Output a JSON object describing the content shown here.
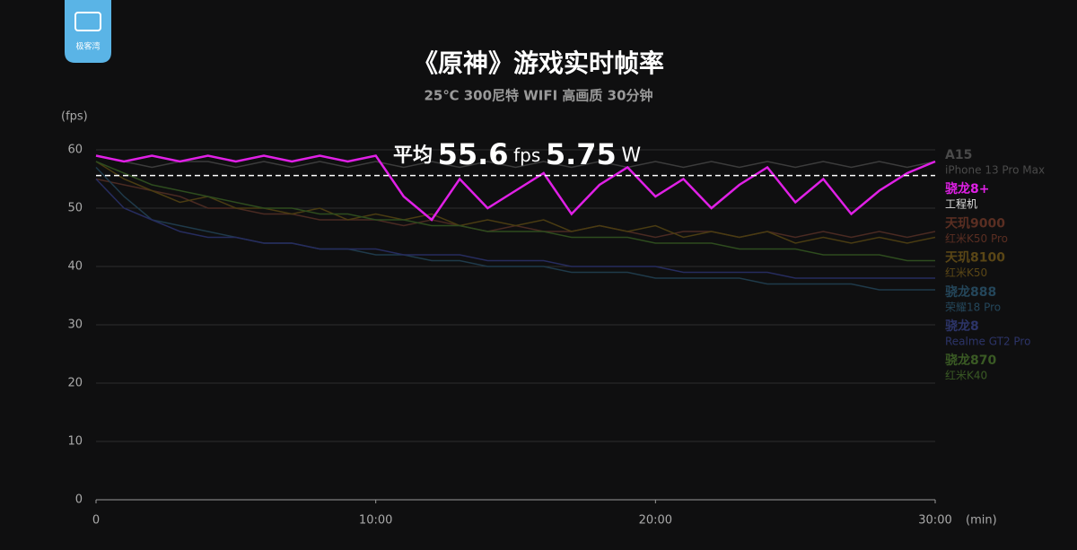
{
  "chart_data": {
    "type": "line",
    "logo_text": "极客湾",
    "title": "《原神》游戏实时帧率",
    "subtitle": "25℃ 300尼特 WIFI 高画质 30分钟",
    "y_label": "(fps)",
    "x_label": "(min)",
    "average_prefix": "平均",
    "average": 55.6,
    "average_unit": "fps",
    "power": 5.75,
    "power_unit": "W",
    "x": [
      0,
      1,
      2,
      3,
      4,
      5,
      6,
      7,
      8,
      9,
      10,
      11,
      12,
      13,
      14,
      15,
      16,
      17,
      18,
      19,
      20,
      21,
      22,
      23,
      24,
      25,
      26,
      27,
      28,
      29,
      30
    ],
    "xlim": [
      0,
      30
    ],
    "xticks": [
      0,
      {
        "value": 10,
        "label": "10:00"
      },
      {
        "value": 20,
        "label": "20:00"
      },
      {
        "value": 30,
        "label": "30:00"
      }
    ],
    "ylim": [
      0,
      60
    ],
    "yticks": [
      0,
      10,
      20,
      30,
      40,
      50,
      60
    ],
    "grid": true,
    "highlight": 1,
    "series": [
      {
        "name": "A15",
        "device": "iPhone 13 Pro Max",
        "color": "#3c3c3c",
        "label_color": "#4a4a4a",
        "values": [
          59,
          58,
          57,
          58,
          58,
          57,
          58,
          57,
          58,
          57,
          58,
          57,
          58,
          57,
          58,
          57,
          58,
          57,
          58,
          57,
          58,
          57,
          58,
          57,
          58,
          57,
          58,
          57,
          58,
          57,
          58
        ]
      },
      {
        "name": "骁龙8+",
        "device": "工程机",
        "color": "#e020e6",
        "label_color": "#e020e6",
        "values": [
          59,
          58,
          59,
          58,
          59,
          58,
          59,
          58,
          59,
          58,
          59,
          52,
          48,
          55,
          50,
          53,
          56,
          49,
          54,
          57,
          52,
          55,
          50,
          54,
          57,
          51,
          55,
          49,
          53,
          56,
          58
        ]
      },
      {
        "name": "天玑9000",
        "device": "红米K50 Pro",
        "color": "#4a2a22",
        "label_color": "#5a2e22",
        "values": [
          55,
          54,
          53,
          52,
          50,
          50,
          49,
          49,
          48,
          48,
          48,
          47,
          48,
          47,
          46,
          47,
          46,
          46,
          47,
          46,
          45,
          46,
          46,
          45,
          46,
          45,
          46,
          45,
          46,
          45,
          46
        ]
      },
      {
        "name": "天玑8100",
        "device": "红米K50",
        "color": "#4a3c12",
        "label_color": "#5a4616",
        "values": [
          58,
          55,
          53,
          51,
          52,
          50,
          50,
          49,
          50,
          48,
          49,
          48,
          49,
          47,
          48,
          47,
          48,
          46,
          47,
          46,
          47,
          45,
          46,
          45,
          46,
          44,
          45,
          44,
          45,
          44,
          45
        ]
      },
      {
        "name": "骁龙888",
        "device": "荣耀18 Pro",
        "color": "#1f3a4a",
        "label_color": "#24465a",
        "values": [
          57,
          52,
          48,
          47,
          46,
          45,
          44,
          44,
          43,
          43,
          42,
          42,
          41,
          41,
          40,
          40,
          40,
          39,
          39,
          39,
          38,
          38,
          38,
          38,
          37,
          37,
          37,
          37,
          36,
          36,
          36
        ]
      },
      {
        "name": "骁龙8",
        "device": "Realme GT2 Pro",
        "color": "#262c5e",
        "label_color": "#2c3468",
        "values": [
          55,
          50,
          48,
          46,
          45,
          45,
          44,
          44,
          43,
          43,
          43,
          42,
          42,
          42,
          41,
          41,
          41,
          40,
          40,
          40,
          40,
          39,
          39,
          39,
          39,
          38,
          38,
          38,
          38,
          38,
          38
        ]
      },
      {
        "name": "骁龙870",
        "device": "红米K40",
        "color": "#2e4c1e",
        "label_color": "#3a5a24",
        "values": [
          58,
          56,
          54,
          53,
          52,
          51,
          50,
          50,
          49,
          49,
          48,
          48,
          47,
          47,
          46,
          46,
          46,
          45,
          45,
          45,
          44,
          44,
          44,
          43,
          43,
          43,
          42,
          42,
          42,
          41,
          41
        ]
      }
    ]
  }
}
